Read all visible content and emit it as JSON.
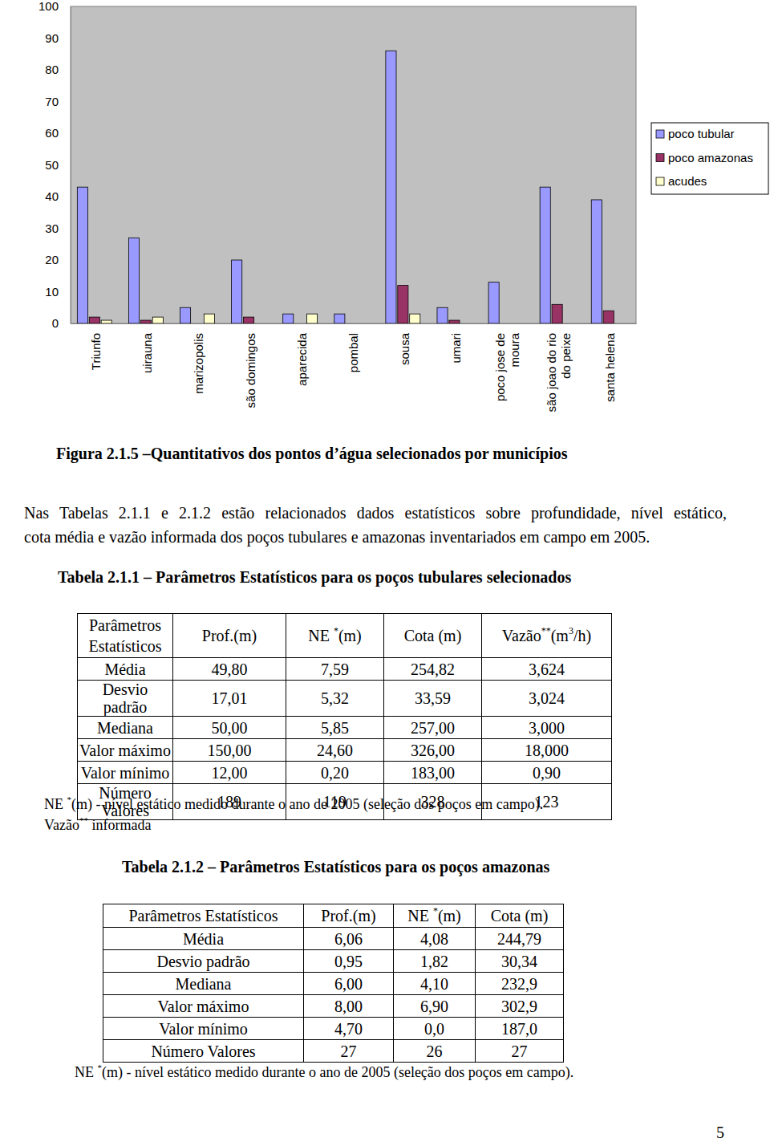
{
  "chart_data": {
    "type": "bar",
    "title": "Figura 2.1.5 –Quantitativos dos pontos d’água selecionados por municípios",
    "categories": [
      "Triunfo",
      "uirauna",
      "marizopolis",
      "são domingos",
      "aparecida",
      "pombal",
      "sousa",
      "umari",
      "poco jose de\nmoura",
      "são joao do rio\ndo peixe",
      "santa helena"
    ],
    "series": [
      {
        "name": "poco tubular",
        "color": "#9999ff",
        "values": [
          43,
          27,
          5,
          20,
          3,
          3,
          86,
          5,
          13,
          43,
          39
        ]
      },
      {
        "name": "poco amazonas",
        "color": "#993366",
        "values": [
          2,
          1,
          0,
          2,
          0,
          0,
          12,
          1,
          0,
          6,
          4
        ]
      },
      {
        "name": "acudes",
        "color": "#ffffcc",
        "values": [
          1,
          2,
          3,
          0,
          3,
          0,
          3,
          0,
          0,
          0,
          0
        ]
      }
    ],
    "ylim": [
      0,
      100
    ],
    "yticks": [
      0,
      10,
      20,
      30,
      40,
      50,
      60,
      70,
      80,
      90,
      100
    ],
    "grid": false,
    "legend": "right"
  },
  "paragraph": [
    "Nas Tabelas 2.1.1 e 2.1.2 estão relacionados dados estatísticos sobre profundidade, nível estático,",
    "cota média e vazão informada dos poços tubulares e amazonas inventariados em campo em 2005."
  ],
  "tables": [
    {
      "title": "Tabela 2.1.1 – Parâmetros Estatísticos para os poços tubulares selecionados",
      "header": [
        [
          "Parâmetros Estatísticos"
        ],
        [
          "Prof.(m)"
        ],
        [
          "NE ",
          {
            "sup": "*"
          },
          "(m)"
        ],
        [
          "Cota (m)"
        ],
        [
          "Vazão",
          {
            "sup": "**"
          },
          "(m",
          {
            "sup": "3"
          },
          "/h)"
        ]
      ],
      "rows": [
        [
          "Média",
          "49,80",
          "7,59",
          "254,82",
          "3,624"
        ],
        [
          "Desvio padrão",
          "17,01",
          "5,32",
          "33,59",
          "3,024"
        ],
        [
          "Mediana",
          "50,00",
          "5,85",
          "257,00",
          "3,000"
        ],
        [
          "Valor máximo",
          "150,00",
          "24,60",
          "326,00",
          "18,000"
        ],
        [
          "Valor mínimo",
          "12,00",
          "0,20",
          "183,00",
          "0,90"
        ],
        [
          "Número Valores",
          "189",
          "119",
          "328",
          "123"
        ]
      ],
      "notes": [
        [
          "NE ",
          {
            "sup": "*"
          },
          "(m) - nível estático medido durante o ano de 2005 (seleção dos poços em campo)."
        ],
        [
          "Vazão",
          {
            "sup": "**"
          },
          " informada"
        ]
      ]
    },
    {
      "title": "Tabela 2.1.2 – Parâmetros Estatísticos para os poços amazonas",
      "header": [
        [
          "Parâmetros Estatísticos"
        ],
        [
          "Prof.(m)"
        ],
        [
          "NE ",
          {
            "sup": "*"
          },
          "(m)"
        ],
        [
          "Cota (m)"
        ]
      ],
      "rows": [
        [
          "Média",
          "6,06",
          "4,08",
          "244,79"
        ],
        [
          "Desvio padrão",
          "0,95",
          "1,82",
          "30,34"
        ],
        [
          "Mediana",
          "6,00",
          "4,10",
          "232,9"
        ],
        [
          "Valor máximo",
          "8,00",
          "6,90",
          "302,9"
        ],
        [
          "Valor mínimo",
          "4,70",
          "0,0",
          "187,0"
        ],
        [
          "Número Valores",
          "27",
          "26",
          "27"
        ]
      ],
      "notes": [
        [
          "NE ",
          {
            "sup": "*"
          },
          "(m) - nível estático medido durante o ano de 2005 (seleção dos poços em campo)."
        ]
      ]
    }
  ],
  "page_number": "5"
}
